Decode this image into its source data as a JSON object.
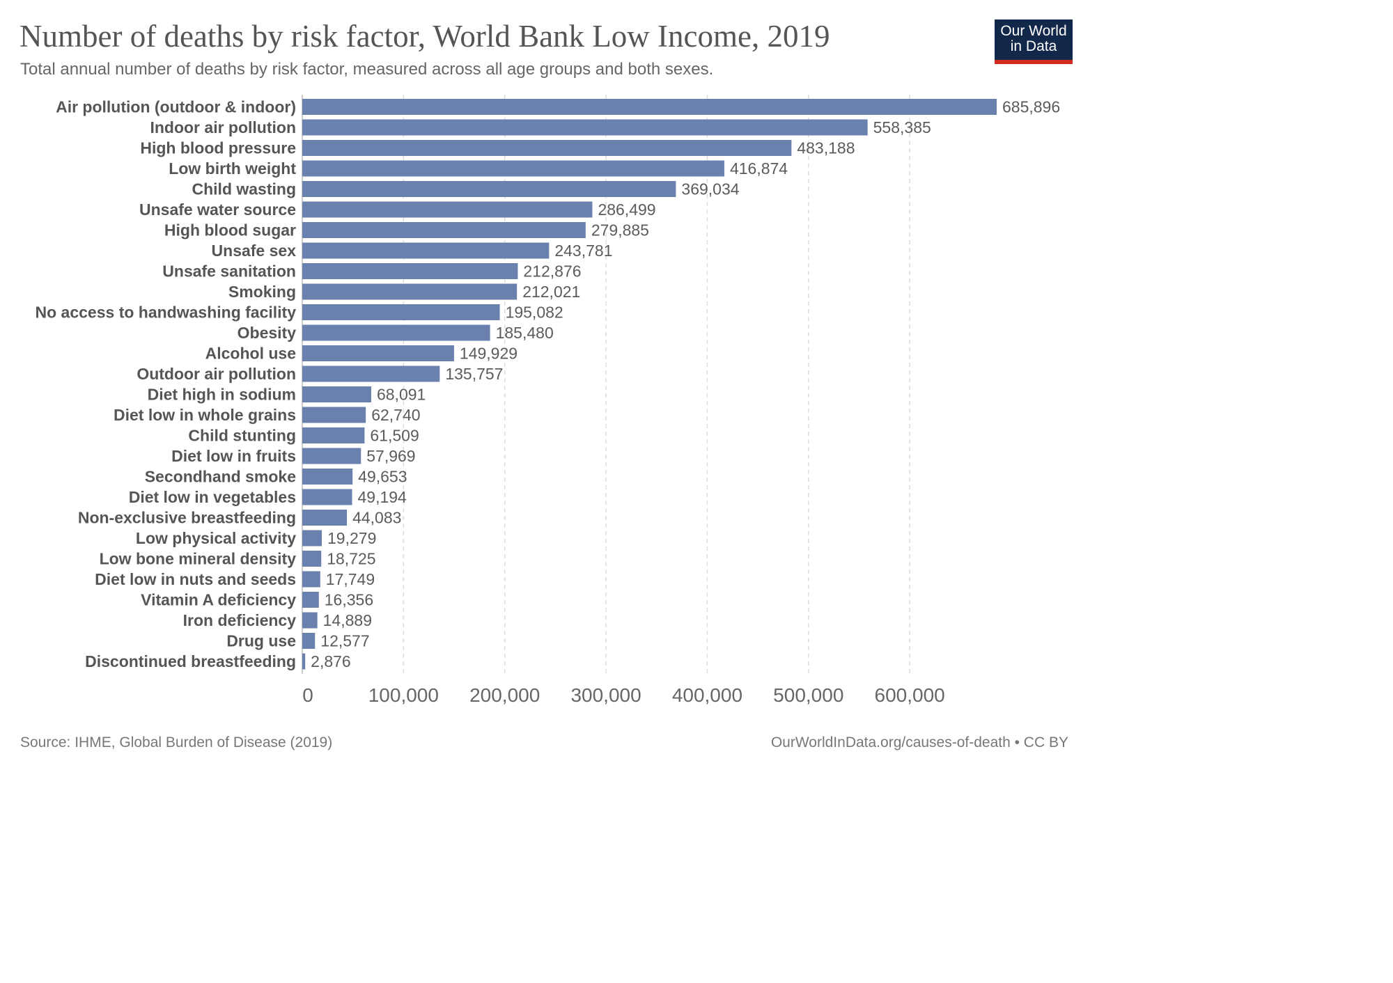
{
  "header": {
    "title": "Number of deaths by risk factor, World Bank Low Income, 2019",
    "subtitle": "Total annual number of deaths by risk factor, measured across all age groups and both sexes."
  },
  "logo": {
    "line1": "Our World",
    "line2": "in Data",
    "bg_color": "#12284a",
    "accent_color": "#d42b21"
  },
  "footer": {
    "source": "Source: IHME, Global Burden of Disease (2019)",
    "url": "OurWorldInData.org/causes-of-death • CC BY"
  },
  "colors": {
    "bar": "#6a80ad",
    "grid": "#dddddd",
    "axis": "#bbbbbb"
  },
  "chart_data": {
    "type": "bar",
    "orientation": "horizontal",
    "title": "Number of deaths by risk factor, World Bank Low Income, 2019",
    "xlabel": "",
    "ylabel": "",
    "xlim": [
      0,
      685896
    ],
    "grid": true,
    "ticks": [
      0,
      100000,
      200000,
      300000,
      400000,
      500000,
      600000
    ],
    "tick_labels": [
      "0",
      "100,000",
      "200,000",
      "300,000",
      "400,000",
      "500,000",
      "600,000"
    ],
    "categories": [
      "Air pollution (outdoor & indoor)",
      "Indoor air pollution",
      "High blood pressure",
      "Low birth weight",
      "Child wasting",
      "Unsafe water source",
      "High blood sugar",
      "Unsafe sex",
      "Unsafe sanitation",
      "Smoking",
      "No access to handwashing facility",
      "Obesity",
      "Alcohol use",
      "Outdoor air pollution",
      "Diet high in sodium",
      "Diet low in whole grains",
      "Child stunting",
      "Diet low in fruits",
      "Secondhand smoke",
      "Diet low in vegetables",
      "Non-exclusive breastfeeding",
      "Low physical activity",
      "Low bone mineral density",
      "Diet low in nuts and seeds",
      "Vitamin A deficiency",
      "Iron deficiency",
      "Drug use",
      "Discontinued breastfeeding"
    ],
    "values": [
      685896,
      558385,
      483188,
      416874,
      369034,
      286499,
      279885,
      243781,
      212876,
      212021,
      195082,
      185480,
      149929,
      135757,
      68091,
      62740,
      61509,
      57969,
      49653,
      49194,
      44083,
      19279,
      18725,
      17749,
      16356,
      14889,
      12577,
      2876
    ],
    "value_labels": [
      "685,896",
      "558,385",
      "483,188",
      "416,874",
      "369,034",
      "286,499",
      "279,885",
      "243,781",
      "212,876",
      "212,021",
      "195,082",
      "185,480",
      "149,929",
      "135,757",
      "68,091",
      "62,740",
      "61,509",
      "57,969",
      "49,653",
      "49,194",
      "44,083",
      "19,279",
      "18,725",
      "17,749",
      "16,356",
      "14,889",
      "12,577",
      "2,876"
    ]
  }
}
